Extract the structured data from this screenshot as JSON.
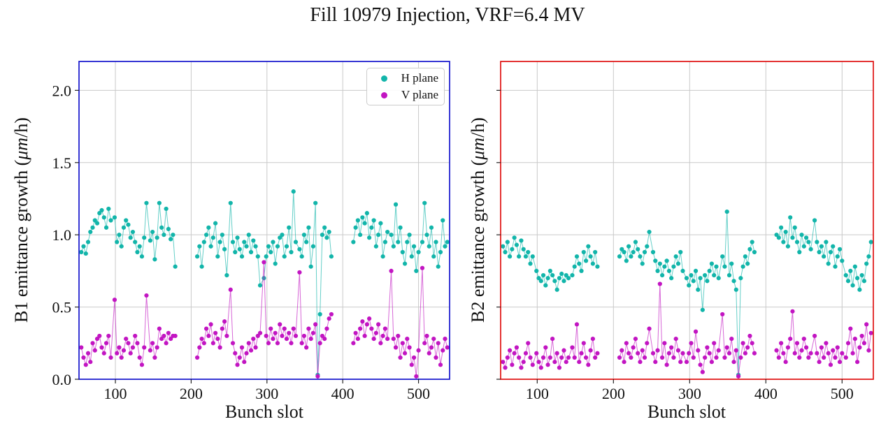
{
  "figure": {
    "title": "Fill 10979 Injection, VRF=6.4 MV"
  },
  "chart_data": [
    {
      "type": "scatter",
      "name": "B1",
      "xlabel": "Bunch slot",
      "ylabel": "B1 emittance growth (μm/h)",
      "ylabel_pre": "B1 emittance growth (",
      "ylabel_italic": "μm",
      "ylabel_post": "/h)",
      "xlim": [
        52,
        541
      ],
      "ylim": [
        0,
        2.2
      ],
      "xticks": [
        100,
        200,
        300,
        400,
        500
      ],
      "yticks": [
        0.0,
        0.5,
        1.0,
        1.5,
        2.0
      ],
      "show_ytick_labels": true,
      "grid": true,
      "spine_color": "#1414cc",
      "legend_position": "upper right",
      "x": [
        55,
        58,
        61,
        64,
        67,
        70,
        73,
        76,
        79,
        82,
        85,
        88,
        91,
        94,
        99,
        102,
        105,
        108,
        111,
        114,
        117,
        120,
        123,
        126,
        129,
        132,
        135,
        138,
        141,
        146,
        149,
        152,
        155,
        158,
        161,
        164,
        167,
        170,
        173,
        176,
        179,
        208,
        211,
        214,
        217,
        220,
        223,
        226,
        229,
        232,
        235,
        238,
        241,
        244,
        247,
        252,
        255,
        258,
        261,
        264,
        267,
        270,
        273,
        276,
        279,
        282,
        285,
        288,
        291,
        296,
        299,
        302,
        305,
        308,
        311,
        314,
        317,
        320,
        323,
        326,
        329,
        332,
        335,
        338,
        343,
        346,
        349,
        352,
        355,
        358,
        361,
        364,
        367,
        370,
        373,
        376,
        379,
        382,
        385,
        414,
        417,
        420,
        423,
        426,
        429,
        432,
        435,
        438,
        441,
        444,
        447,
        450,
        453,
        456,
        459,
        464,
        467,
        470,
        473,
        476,
        479,
        482,
        485,
        488,
        491,
        494,
        497,
        500,
        505,
        508,
        511,
        514,
        517,
        520,
        523,
        526,
        529,
        532,
        535,
        538
      ],
      "series": [
        {
          "name": "H plane",
          "color": "#12b5aa",
          "y": [
            0.88,
            0.92,
            0.87,
            0.95,
            1.02,
            1.05,
            1.1,
            1.08,
            1.15,
            1.17,
            1.12,
            1.05,
            1.18,
            1.1,
            1.12,
            0.95,
            1.0,
            0.92,
            1.05,
            1.1,
            1.07,
            0.98,
            1.02,
            0.95,
            0.88,
            0.92,
            0.85,
            0.98,
            1.22,
            0.96,
            1.02,
            0.83,
            0.98,
            1.22,
            1.05,
            1.0,
            1.18,
            1.04,
            0.97,
            1.0,
            0.78,
            0.85,
            0.92,
            0.78,
            0.95,
            1.0,
            1.05,
            0.92,
            0.98,
            1.08,
            0.85,
            0.95,
            1.0,
            0.9,
            0.72,
            1.22,
            0.95,
            0.88,
            0.98,
            0.9,
            0.85,
            0.95,
            0.92,
            1.0,
            0.88,
            0.96,
            0.92,
            0.85,
            0.65,
            0.7,
            0.85,
            0.92,
            0.88,
            0.95,
            0.8,
            0.92,
            0.98,
            1.0,
            0.85,
            0.92,
            1.05,
            0.88,
            1.3,
            0.95,
            0.9,
            0.85,
            1.0,
            0.95,
            1.05,
            0.78,
            0.92,
            1.22,
            0.03,
            0.45,
            1.0,
            1.05,
            0.98,
            1.02,
            0.85,
            0.95,
            1.05,
            1.1,
            1.0,
            1.12,
            1.08,
            1.15,
            0.98,
            1.05,
            1.1,
            0.92,
            1.0,
            1.08,
            0.85,
            0.95,
            1.02,
            1.0,
            0.92,
            1.21,
            0.95,
            1.05,
            0.88,
            0.8,
            0.95,
            1.0,
            0.85,
            0.92,
            0.75,
            0.88,
            0.95,
            1.22,
            1.0,
            0.92,
            1.05,
            0.85,
            0.95,
            0.78,
            0.88,
            1.1,
            0.92,
            0.95
          ]
        },
        {
          "name": "V plane",
          "color": "#c215c2",
          "y": [
            0.22,
            0.15,
            0.1,
            0.18,
            0.12,
            0.25,
            0.2,
            0.28,
            0.3,
            0.22,
            0.18,
            0.25,
            0.3,
            0.15,
            0.55,
            0.18,
            0.22,
            0.15,
            0.2,
            0.28,
            0.25,
            0.18,
            0.22,
            0.3,
            0.25,
            0.15,
            0.1,
            0.22,
            0.58,
            0.2,
            0.25,
            0.15,
            0.22,
            0.35,
            0.28,
            0.3,
            0.25,
            0.32,
            0.28,
            0.3,
            0.3,
            0.15,
            0.22,
            0.28,
            0.25,
            0.35,
            0.3,
            0.38,
            0.25,
            0.32,
            0.28,
            0.22,
            0.35,
            0.4,
            0.3,
            0.62,
            0.25,
            0.18,
            0.1,
            0.15,
            0.22,
            0.12,
            0.18,
            0.25,
            0.2,
            0.28,
            0.22,
            0.3,
            0.32,
            0.81,
            0.3,
            0.25,
            0.35,
            0.28,
            0.32,
            0.25,
            0.38,
            0.3,
            0.35,
            0.28,
            0.32,
            0.25,
            0.35,
            0.3,
            0.74,
            0.25,
            0.3,
            0.22,
            0.35,
            0.28,
            0.32,
            0.38,
            0.02,
            0.25,
            0.3,
            0.28,
            0.35,
            0.42,
            0.45,
            0.25,
            0.32,
            0.28,
            0.35,
            0.4,
            0.3,
            0.38,
            0.42,
            0.35,
            0.28,
            0.32,
            0.38,
            0.25,
            0.3,
            0.35,
            0.28,
            0.75,
            0.28,
            0.22,
            0.3,
            0.15,
            0.25,
            0.18,
            0.28,
            0.22,
            0.1,
            0.15,
            0.02,
            0.2,
            0.77,
            0.25,
            0.3,
            0.18,
            0.22,
            0.28,
            0.15,
            0.25,
            0.1,
            0.2,
            0.28,
            0.22
          ]
        }
      ]
    },
    {
      "type": "scatter",
      "name": "B2",
      "xlabel": "Bunch slot",
      "ylabel": "B2 emittance growth (μm/h)",
      "ylabel_pre": "B2 emittance growth (",
      "ylabel_italic": "μm",
      "ylabel_post": "/h)",
      "xlim": [
        52,
        541
      ],
      "ylim": [
        0,
        2.2
      ],
      "xticks": [
        100,
        200,
        300,
        400,
        500
      ],
      "yticks": [
        0.0,
        0.5,
        1.0,
        1.5,
        2.0
      ],
      "show_ytick_labels": false,
      "grid": true,
      "spine_color": "#e01010",
      "legend_position": "none",
      "x": [
        55,
        58,
        61,
        64,
        67,
        70,
        73,
        76,
        79,
        82,
        85,
        88,
        91,
        94,
        99,
        102,
        105,
        108,
        111,
        114,
        117,
        120,
        123,
        126,
        129,
        132,
        135,
        138,
        141,
        146,
        149,
        152,
        155,
        158,
        161,
        164,
        167,
        170,
        173,
        176,
        179,
        208,
        211,
        214,
        217,
        220,
        223,
        226,
        229,
        232,
        235,
        238,
        241,
        244,
        247,
        252,
        255,
        258,
        261,
        264,
        267,
        270,
        273,
        276,
        279,
        282,
        285,
        288,
        291,
        296,
        299,
        302,
        305,
        308,
        311,
        314,
        317,
        320,
        323,
        326,
        329,
        332,
        335,
        338,
        343,
        346,
        349,
        352,
        355,
        358,
        361,
        364,
        367,
        370,
        373,
        376,
        379,
        382,
        385,
        414,
        417,
        420,
        423,
        426,
        429,
        432,
        435,
        438,
        441,
        444,
        447,
        450,
        453,
        456,
        459,
        464,
        467,
        470,
        473,
        476,
        479,
        482,
        485,
        488,
        491,
        494,
        497,
        500,
        505,
        508,
        511,
        514,
        517,
        520,
        523,
        526,
        529,
        532,
        535,
        538
      ],
      "series": [
        {
          "name": "H plane",
          "color": "#12b5aa",
          "y": [
            0.92,
            0.88,
            0.95,
            0.85,
            0.9,
            0.98,
            0.93,
            0.85,
            0.96,
            0.9,
            0.85,
            0.88,
            0.8,
            0.85,
            0.75,
            0.7,
            0.68,
            0.72,
            0.65,
            0.7,
            0.75,
            0.72,
            0.68,
            0.62,
            0.7,
            0.73,
            0.68,
            0.72,
            0.7,
            0.72,
            0.78,
            0.85,
            0.8,
            0.75,
            0.88,
            0.82,
            0.92,
            0.85,
            0.8,
            0.88,
            0.78,
            0.85,
            0.9,
            0.88,
            0.82,
            0.92,
            0.85,
            0.88,
            0.95,
            0.9,
            0.85,
            0.8,
            0.88,
            0.92,
            1.02,
            0.88,
            0.82,
            0.75,
            0.8,
            0.72,
            0.78,
            0.82,
            0.75,
            0.7,
            0.78,
            0.85,
            0.8,
            0.88,
            0.75,
            0.7,
            0.65,
            0.72,
            0.68,
            0.75,
            0.62,
            0.7,
            0.48,
            0.72,
            0.68,
            0.75,
            0.8,
            0.72,
            0.78,
            0.7,
            0.85,
            0.78,
            1.16,
            0.72,
            0.8,
            0.68,
            0.62,
            0.03,
            0.7,
            0.78,
            0.85,
            0.8,
            0.9,
            0.95,
            0.88,
            1.0,
            0.98,
            1.05,
            0.95,
            1.02,
            0.92,
            1.12,
            0.98,
            1.05,
            0.95,
            0.88,
            1.0,
            0.92,
            0.98,
            0.95,
            0.9,
            1.1,
            0.95,
            0.88,
            0.92,
            0.85,
            0.95,
            0.8,
            0.88,
            0.92,
            0.78,
            0.85,
            0.9,
            0.82,
            0.72,
            0.68,
            0.75,
            0.65,
            0.78,
            0.7,
            0.62,
            0.72,
            0.68,
            0.8,
            0.85,
            0.95
          ]
        },
        {
          "name": "V plane",
          "color": "#c215c2",
          "y": [
            0.12,
            0.08,
            0.15,
            0.2,
            0.1,
            0.18,
            0.22,
            0.15,
            0.08,
            0.12,
            0.18,
            0.25,
            0.15,
            0.1,
            0.18,
            0.12,
            0.08,
            0.15,
            0.22,
            0.1,
            0.15,
            0.28,
            0.12,
            0.18,
            0.08,
            0.15,
            0.2,
            0.12,
            0.15,
            0.22,
            0.15,
            0.38,
            0.12,
            0.18,
            0.25,
            0.15,
            0.1,
            0.2,
            0.28,
            0.15,
            0.18,
            0.15,
            0.2,
            0.12,
            0.25,
            0.18,
            0.15,
            0.22,
            0.28,
            0.18,
            0.12,
            0.2,
            0.15,
            0.25,
            0.35,
            0.18,
            0.12,
            0.2,
            0.66,
            0.15,
            0.25,
            0.1,
            0.18,
            0.22,
            0.15,
            0.28,
            0.2,
            0.12,
            0.18,
            0.12,
            0.18,
            0.25,
            0.15,
            0.33,
            0.2,
            0.1,
            0.05,
            0.15,
            0.22,
            0.18,
            0.12,
            0.25,
            0.15,
            0.2,
            0.45,
            0.15,
            0.22,
            0.18,
            0.28,
            0.12,
            0.2,
            0.02,
            0.15,
            0.25,
            0.18,
            0.22,
            0.3,
            0.25,
            0.18,
            0.2,
            0.15,
            0.25,
            0.18,
            0.12,
            0.22,
            0.28,
            0.47,
            0.18,
            0.25,
            0.15,
            0.2,
            0.28,
            0.22,
            0.15,
            0.18,
            0.3,
            0.18,
            0.12,
            0.22,
            0.15,
            0.25,
            0.18,
            0.1,
            0.2,
            0.15,
            0.22,
            0.12,
            0.18,
            0.15,
            0.25,
            0.35,
            0.18,
            0.28,
            0.12,
            0.22,
            0.3,
            0.25,
            0.38,
            0.2,
            0.32
          ]
        }
      ]
    }
  ]
}
